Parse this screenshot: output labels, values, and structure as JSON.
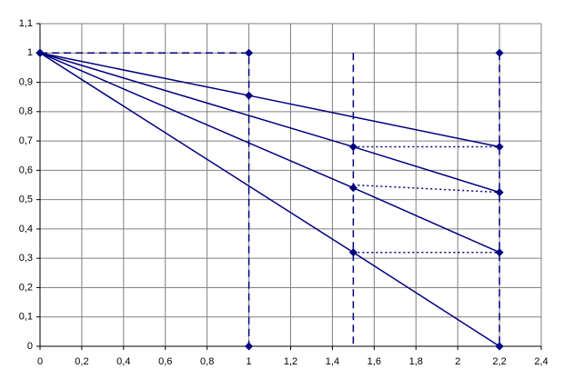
{
  "chart_data": {
    "type": "line",
    "color": "#000080",
    "grid": true,
    "xlim": [
      0,
      2.4
    ],
    "xticks": [
      0,
      {
        "value": 0.2,
        "label": "0,2"
      },
      {
        "value": 0.4,
        "label": "0,4"
      },
      {
        "value": 0.6,
        "label": "0,6"
      },
      {
        "value": 0.8,
        "label": "0,8"
      },
      1,
      {
        "value": 1.2,
        "label": "1,2"
      },
      {
        "value": 1.4,
        "label": "1,4"
      },
      {
        "value": 1.6,
        "label": "1,6"
      },
      {
        "value": 1.8,
        "label": "1,8"
      },
      2,
      {
        "value": 2.2,
        "label": "2,2"
      },
      {
        "value": 2.4,
        "label": "2,4"
      }
    ],
    "ylim": [
      0,
      1.1
    ],
    "yticks": [
      0,
      {
        "value": 0.1,
        "label": "0,1"
      },
      {
        "value": 0.2,
        "label": "0,2"
      },
      {
        "value": 0.3,
        "label": "0,3"
      },
      {
        "value": 0.4,
        "label": "0,4"
      },
      {
        "value": 0.5,
        "label": "0,5"
      },
      {
        "value": 0.6,
        "label": "0,6"
      },
      {
        "value": 0.7,
        "label": "0,7"
      },
      {
        "value": 0.8,
        "label": "0,8"
      },
      {
        "value": 0.9,
        "label": "0,9"
      },
      1,
      {
        "value": 1.1,
        "label": "1,1"
      }
    ],
    "series": [
      {
        "style": "solid",
        "markers": true,
        "x": [
          0,
          1,
          2.2
        ],
        "values": [
          1,
          0.855,
          0.68
        ]
      },
      {
        "style": "solid",
        "markers": true,
        "x": [
          0,
          1.5,
          2.2
        ],
        "values": [
          1,
          0.68,
          0.525
        ]
      },
      {
        "style": "solid",
        "markers": true,
        "x": [
          0,
          1.5,
          2.2
        ],
        "values": [
          1,
          0.54,
          0.32
        ]
      },
      {
        "style": "solid",
        "markers": true,
        "x": [
          0,
          1.5,
          2.2
        ],
        "values": [
          1,
          0.32,
          0
        ]
      },
      {
        "style": "dashed",
        "markers": true,
        "x": [
          0,
          1,
          1
        ],
        "values": [
          1,
          1,
          0
        ]
      },
      {
        "style": "dashed",
        "markers": false,
        "x": [
          1.5,
          1.5
        ],
        "values": [
          1,
          0
        ]
      },
      {
        "style": "dashed",
        "markers": true,
        "x": [
          2.2,
          2.2
        ],
        "values": [
          1,
          0
        ]
      },
      {
        "style": "dotted",
        "markers": false,
        "x": [
          1.5,
          2.2
        ],
        "values": [
          0.68,
          0.68
        ]
      },
      {
        "style": "dotted",
        "markers": false,
        "x": [
          1.5,
          2.2
        ],
        "values": [
          0.55,
          0.525
        ]
      },
      {
        "style": "dotted",
        "markers": false,
        "x": [
          1.5,
          2.2
        ],
        "values": [
          0.32,
          0.32
        ]
      }
    ]
  }
}
